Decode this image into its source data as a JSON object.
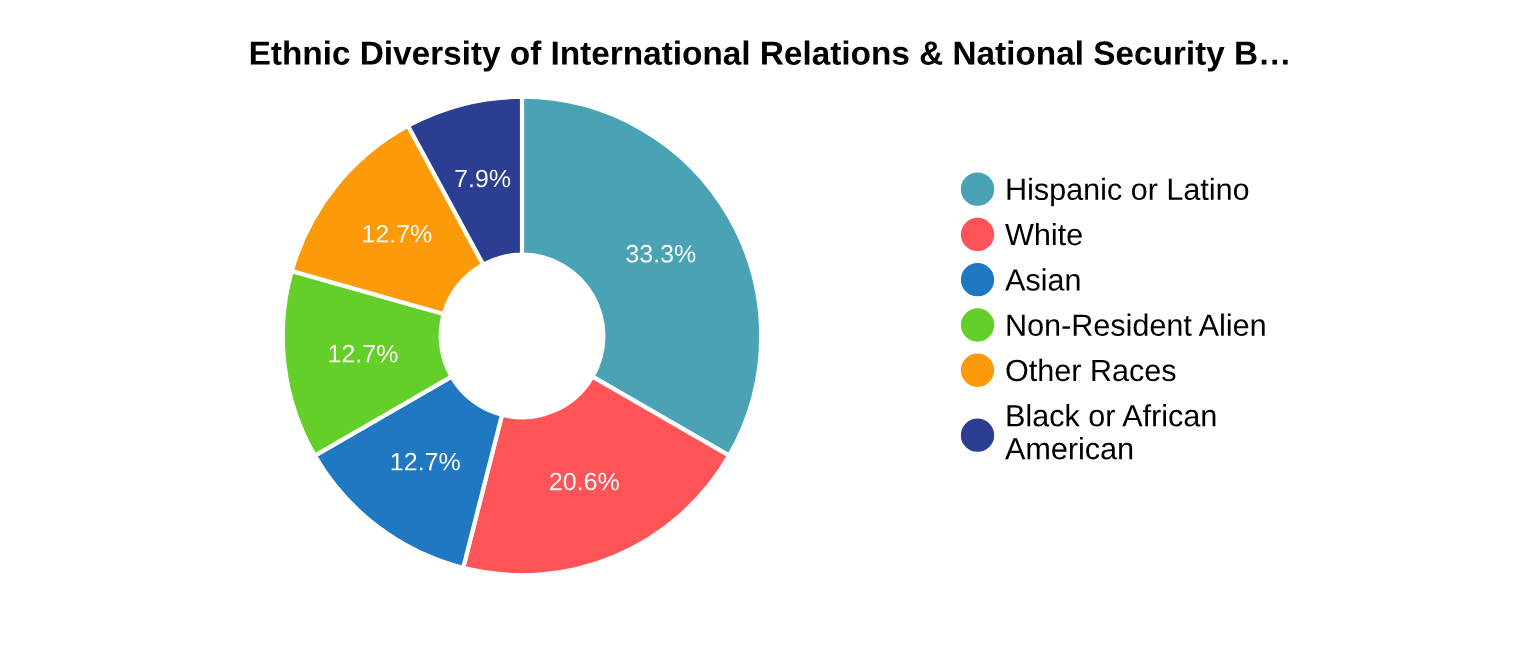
{
  "chart_data": {
    "type": "donut",
    "title": "Ethnic Diversity of International Relations & National Security B…",
    "categories": [
      "Hispanic or Latino",
      "White",
      "Asian",
      "Non-Resident Alien",
      "Other Races",
      "Black or African\nAmerican"
    ],
    "values": [
      33.3,
      20.6,
      12.7,
      12.7,
      12.7,
      7.9
    ],
    "colors": [
      "#4aa3b5",
      "#fe5457",
      "#1f78c1",
      "#63cf28",
      "#fc9a0a",
      "#2c3e91"
    ],
    "value_labels": [
      "33.3%",
      "20.6%",
      "12.7%",
      "12.7%",
      "12.7%",
      "7.9%"
    ],
    "legend": "right"
  }
}
